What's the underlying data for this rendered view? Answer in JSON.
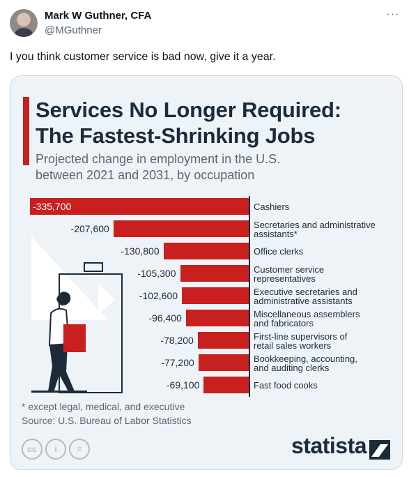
{
  "tweet": {
    "author_name": "Mark W Guthner, CFA",
    "author_handle": "@MGuthner",
    "more_label": "···",
    "text": "I you think customer service is bad now, give it a year."
  },
  "infographic": {
    "title_line1": "Services No Longer Required:",
    "title_line2": "The Fastest-Shrinking Jobs",
    "subtitle_line1": "Projected change in employment in the U.S.",
    "subtitle_line2": "between 2021 and 2031, by occupation",
    "footnote": "* except legal, medical, and executive",
    "source": "Source: U.S. Bureau of Labor Statistics",
    "brand": "statista",
    "license_icons": [
      "creative-commons-icon",
      "attribution-icon",
      "no-derivatives-icon"
    ],
    "license_labels": [
      "cc",
      "i",
      "="
    ],
    "accent_color": "#c8201e",
    "dark_color": "#1c2b3a"
  },
  "chart_data": {
    "type": "bar",
    "orientation": "horizontal",
    "categories": [
      [
        "Cashiers"
      ],
      [
        "Secretaries and administrative",
        "assistants*"
      ],
      [
        "Office clerks"
      ],
      [
        "Customer service",
        "representatives"
      ],
      [
        "Executive secretaries and",
        "administrative assistants"
      ],
      [
        "Miscellaneous assemblers",
        "and fabricators"
      ],
      [
        "First-line supervisors of",
        "retail sales workers"
      ],
      [
        "Bookkeeping, accounting,",
        "and auditing clerks"
      ],
      [
        "Fast food cooks"
      ]
    ],
    "values": [
      -335700,
      -207600,
      -130800,
      -105300,
      -102600,
      -96400,
      -78200,
      -77200,
      -69100
    ],
    "labels": [
      "-335,700",
      "-207,600",
      "-130,800",
      "-105,300",
      "-102,600",
      "-96,400",
      "-78,200",
      "-77,200",
      "-69,100"
    ],
    "xlim": [
      -335700,
      0
    ]
  }
}
